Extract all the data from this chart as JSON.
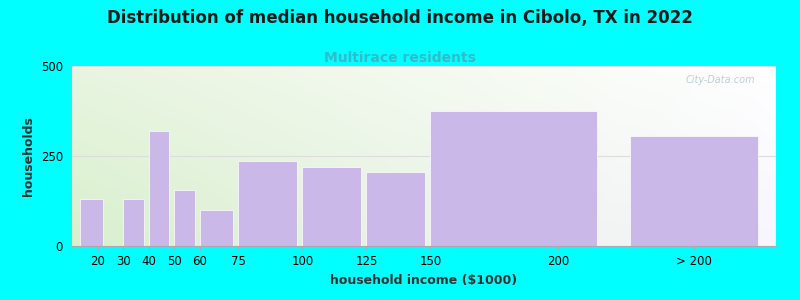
{
  "title": "Distribution of median household income in Cibolo, TX in 2022",
  "subtitle": "Multirace residents",
  "xlabel": "household income ($1000)",
  "ylabel": "households",
  "values": [
    130,
    0,
    130,
    320,
    155,
    100,
    235,
    220,
    205,
    375,
    305
  ],
  "bar_lefts": [
    13,
    22,
    30,
    40,
    50,
    60,
    75,
    100,
    125,
    150,
    228
  ],
  "bar_widths": [
    9,
    0,
    8,
    8,
    8,
    13,
    23,
    23,
    23,
    65,
    50
  ],
  "bar_color": "#c9b8e8",
  "background_color": "#00ffff",
  "plot_bg_top_left": "#daf0d0",
  "plot_bg_bottom_right": "#f5f0ff",
  "ylim": [
    0,
    500
  ],
  "yticks": [
    0,
    250,
    500
  ],
  "xlim": [
    10,
    285
  ],
  "xtick_positions": [
    20,
    30,
    40,
    50,
    60,
    75,
    100,
    125,
    150,
    200,
    253
  ],
  "xtick_labels": [
    "20",
    "30",
    "40",
    "50",
    "60",
    "75",
    "100",
    "125",
    "150",
    "200",
    "> 200"
  ],
  "title_fontsize": 12,
  "subtitle_fontsize": 10,
  "subtitle_color": "#33bbcc",
  "label_fontsize": 9,
  "tick_fontsize": 8.5,
  "watermark": "City-Data.com"
}
